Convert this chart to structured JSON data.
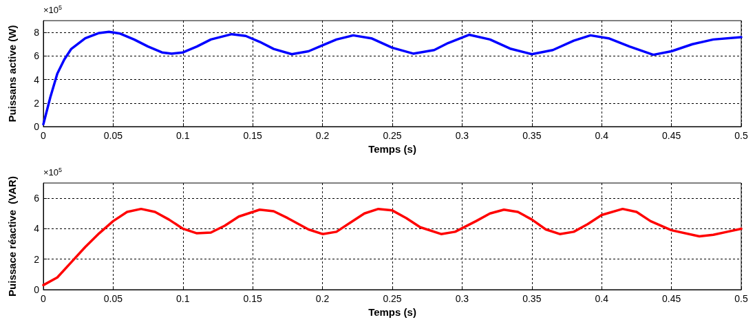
{
  "chart_data": [
    {
      "type": "line",
      "xlabel": "Temps (s)",
      "ylabel": "Puissans active (W)",
      "annotations": [
        "×10$^{5}$"
      ],
      "grid": true,
      "marker": "none",
      "line_style": "solid",
      "xlim": [
        0,
        0.5
      ],
      "ylim": [
        0,
        9
      ],
      "xticks": [
        0,
        0.05,
        0.1,
        0.15,
        0.2,
        0.25,
        0.3,
        0.35,
        0.4,
        0.45,
        0.5
      ],
      "yticks": [
        0,
        2,
        4,
        6,
        8
      ],
      "series": [
        {
          "color": "#0000ff",
          "x": [
            0,
            0.005,
            0.01,
            0.015,
            0.02,
            0.03,
            0.04,
            0.047,
            0.055,
            0.065,
            0.075,
            0.085,
            0.092,
            0.1,
            0.11,
            0.12,
            0.135,
            0.145,
            0.155,
            0.165,
            0.178,
            0.19,
            0.2,
            0.21,
            0.222,
            0.235,
            0.25,
            0.265,
            0.28,
            0.29,
            0.305,
            0.32,
            0.335,
            0.35,
            0.365,
            0.38,
            0.392,
            0.405,
            0.42,
            0.437,
            0.45,
            0.465,
            0.48,
            0.5
          ],
          "values": [
            0.2,
            2.5,
            4.5,
            5.7,
            6.6,
            7.5,
            7.95,
            8.05,
            7.9,
            7.4,
            6.8,
            6.3,
            6.2,
            6.3,
            6.8,
            7.4,
            7.85,
            7.7,
            7.2,
            6.6,
            6.15,
            6.4,
            6.9,
            7.4,
            7.75,
            7.5,
            6.7,
            6.2,
            6.5,
            7.1,
            7.8,
            7.4,
            6.6,
            6.15,
            6.5,
            7.3,
            7.75,
            7.5,
            6.8,
            6.1,
            6.4,
            7.0,
            7.4,
            7.6
          ]
        }
      ]
    },
    {
      "type": "line",
      "xlabel": "Temps (s)",
      "ylabel": "Puissace réactive  (VAR)",
      "annotations": [
        "×10$^{5}$"
      ],
      "grid": true,
      "marker": "none",
      "line_style": "solid",
      "xlim": [
        0,
        0.5
      ],
      "ylim": [
        0,
        7
      ],
      "xticks": [
        0,
        0.05,
        0.1,
        0.15,
        0.2,
        0.25,
        0.3,
        0.35,
        0.4,
        0.45,
        0.5
      ],
      "yticks": [
        0,
        2,
        4,
        6
      ],
      "series": [
        {
          "color": "#ff0000",
          "x": [
            0,
            0.01,
            0.02,
            0.03,
            0.04,
            0.05,
            0.06,
            0.07,
            0.08,
            0.09,
            0.1,
            0.11,
            0.12,
            0.13,
            0.14,
            0.155,
            0.165,
            0.175,
            0.19,
            0.2,
            0.21,
            0.22,
            0.23,
            0.24,
            0.25,
            0.26,
            0.27,
            0.285,
            0.295,
            0.31,
            0.32,
            0.33,
            0.34,
            0.35,
            0.36,
            0.37,
            0.38,
            0.39,
            0.4,
            0.415,
            0.425,
            0.435,
            0.45,
            0.47,
            0.48,
            0.49,
            0.5
          ],
          "values": [
            0.3,
            0.8,
            1.8,
            2.8,
            3.7,
            4.5,
            5.1,
            5.3,
            5.1,
            4.6,
            4.0,
            3.7,
            3.75,
            4.2,
            4.8,
            5.25,
            5.15,
            4.7,
            3.95,
            3.65,
            3.8,
            4.4,
            5.0,
            5.3,
            5.2,
            4.7,
            4.1,
            3.65,
            3.8,
            4.5,
            5.0,
            5.25,
            5.1,
            4.6,
            3.95,
            3.65,
            3.8,
            4.3,
            4.9,
            5.3,
            5.1,
            4.5,
            3.9,
            3.5,
            3.6,
            3.8,
            4.0
          ]
        }
      ]
    }
  ]
}
